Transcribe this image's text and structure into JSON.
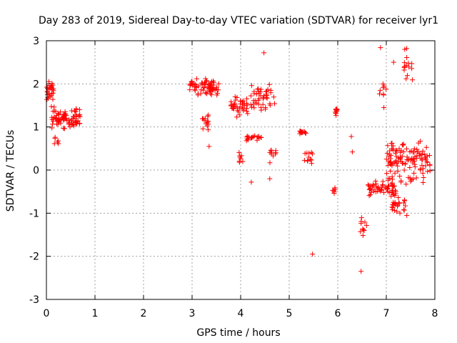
{
  "chart_data": {
    "type": "scatter",
    "title": "Day 283 of 2019, Sidereal Day-to-day VTEC variation (SDTVAR) for receiver lyr1",
    "xlabel": "GPS time / hours",
    "ylabel": "SDTVAR / TECUs",
    "xlim": [
      0,
      8
    ],
    "ylim": [
      -3,
      3
    ],
    "xticks": [
      "0",
      "1",
      "2",
      "3",
      "4",
      "5",
      "6",
      "7",
      "8"
    ],
    "yticks": [
      "-3",
      "-2",
      "-1",
      "0",
      "1",
      "2",
      "3"
    ],
    "grid": true,
    "marker": "+",
    "color": "#ff0000",
    "clusters": [
      {
        "x_range": [
          0.0,
          0.15
        ],
        "y_center": 1.85,
        "y_spread": 0.25,
        "count": 30
      },
      {
        "x_range": [
          0.1,
          0.7
        ],
        "y_center": 1.2,
        "y_spread": 0.35,
        "count": 90
      },
      {
        "x_range": [
          0.15,
          0.25
        ],
        "y_center": 0.65,
        "y_spread": 0.15,
        "count": 6
      },
      {
        "x_range": [
          2.95,
          3.55
        ],
        "y_center": 1.95,
        "y_spread": 0.3,
        "count": 70
      },
      {
        "x_range": [
          3.2,
          3.35
        ],
        "y_center": 1.1,
        "y_spread": 0.25,
        "count": 14
      },
      {
        "x_range": [
          3.8,
          4.15
        ],
        "y_center": 1.5,
        "y_spread": 0.3,
        "count": 40
      },
      {
        "x_range": [
          3.95,
          4.05
        ],
        "y_center": 0.3,
        "y_spread": 0.2,
        "count": 8
      },
      {
        "x_range": [
          4.1,
          4.45
        ],
        "y_center": 0.75,
        "y_spread": 0.1,
        "count": 18
      },
      {
        "x_range": [
          4.2,
          4.7
        ],
        "y_center": 1.7,
        "y_spread": 0.4,
        "count": 45
      },
      {
        "x_range": [
          4.6,
          4.75
        ],
        "y_center": 0.4,
        "y_spread": 0.35,
        "count": 10
      },
      {
        "x_range": [
          5.2,
          5.35
        ],
        "y_center": 0.88,
        "y_spread": 0.06,
        "count": 14
      },
      {
        "x_range": [
          5.3,
          5.5
        ],
        "y_center": 0.25,
        "y_spread": 0.25,
        "count": 12
      },
      {
        "x_range": [
          5.9,
          6.0
        ],
        "y_center": 1.35,
        "y_spread": 0.2,
        "count": 10
      },
      {
        "x_range": [
          5.88,
          5.95
        ],
        "y_center": -0.45,
        "y_spread": 0.3,
        "count": 6
      },
      {
        "x_range": [
          6.45,
          6.6
        ],
        "y_center": -1.3,
        "y_spread": 0.45,
        "count": 10
      },
      {
        "x_range": [
          6.6,
          7.2
        ],
        "y_center": -0.45,
        "y_spread": 0.25,
        "count": 60
      },
      {
        "x_range": [
          7.0,
          7.9
        ],
        "y_center": 0.2,
        "y_spread": 0.75,
        "count": 130
      },
      {
        "x_range": [
          7.1,
          7.45
        ],
        "y_center": -0.8,
        "y_spread": 0.3,
        "count": 25
      },
      {
        "x_range": [
          7.35,
          7.55
        ],
        "y_center": 2.3,
        "y_spread": 0.5,
        "count": 14
      },
      {
        "x_range": [
          6.85,
          7.0
        ],
        "y_center": 1.8,
        "y_spread": 0.35,
        "count": 8
      }
    ],
    "outliers": [
      {
        "x": 4.22,
        "y": -0.28
      },
      {
        "x": 4.6,
        "y": -0.2
      },
      {
        "x": 4.48,
        "y": 2.72
      },
      {
        "x": 5.48,
        "y": -1.95
      },
      {
        "x": 6.48,
        "y": -2.35
      },
      {
        "x": 6.28,
        "y": 0.78
      },
      {
        "x": 6.3,
        "y": 0.42
      },
      {
        "x": 6.88,
        "y": 2.84
      },
      {
        "x": 7.42,
        "y": 2.82
      },
      {
        "x": 7.38,
        "y": 2.8
      },
      {
        "x": 6.95,
        "y": 1.45
      },
      {
        "x": 7.15,
        "y": 2.5
      },
      {
        "x": 3.35,
        "y": 0.55
      }
    ]
  }
}
